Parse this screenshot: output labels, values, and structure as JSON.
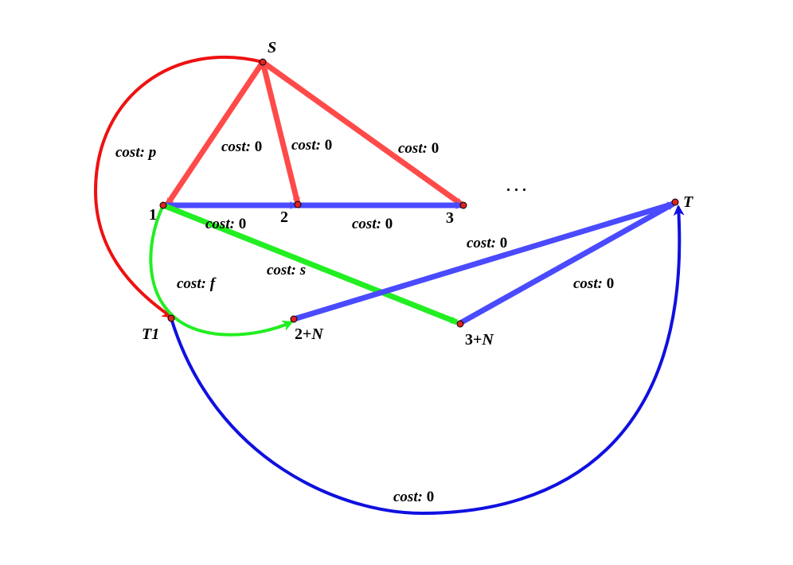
{
  "diagram": {
    "colors": {
      "red": "#ff4a4a",
      "dark_red": "#ee1111",
      "blue": "#4a4aff",
      "dark_blue": "#1010e0",
      "green": "#22ee22",
      "node": "#dd2222"
    },
    "nodes": {
      "S": "S",
      "n1": "1",
      "n2": "2",
      "n3": "3",
      "T": "T",
      "T1": "T1",
      "n2N": {
        "num": "2+",
        "var": "N"
      },
      "n3N": {
        "num": "3+",
        "var": "N"
      },
      "ellipsis": ". . ."
    },
    "edges": {
      "s_1_curve": {
        "label": "cost:",
        "value": "p"
      },
      "s_2": {
        "label": "cost:",
        "value": "0"
      },
      "s_2b": {
        "label": "cost:",
        "value": "0"
      },
      "s_3": {
        "label": "cost:",
        "value": "0"
      },
      "e_1_2": {
        "label": "cost:",
        "value": "0"
      },
      "e_2_3": {
        "label": "cost:",
        "value": "0"
      },
      "e_1_3N": {
        "label": "cost:",
        "value": "s"
      },
      "e_1_2N": {
        "label": "cost:",
        "value": "f"
      },
      "e_2N_T": {
        "label": "cost:",
        "value": "0"
      },
      "e_3N_T": {
        "label": "cost:",
        "value": "0"
      },
      "e_T1_T": {
        "label": "cost:",
        "value": "0"
      }
    }
  }
}
